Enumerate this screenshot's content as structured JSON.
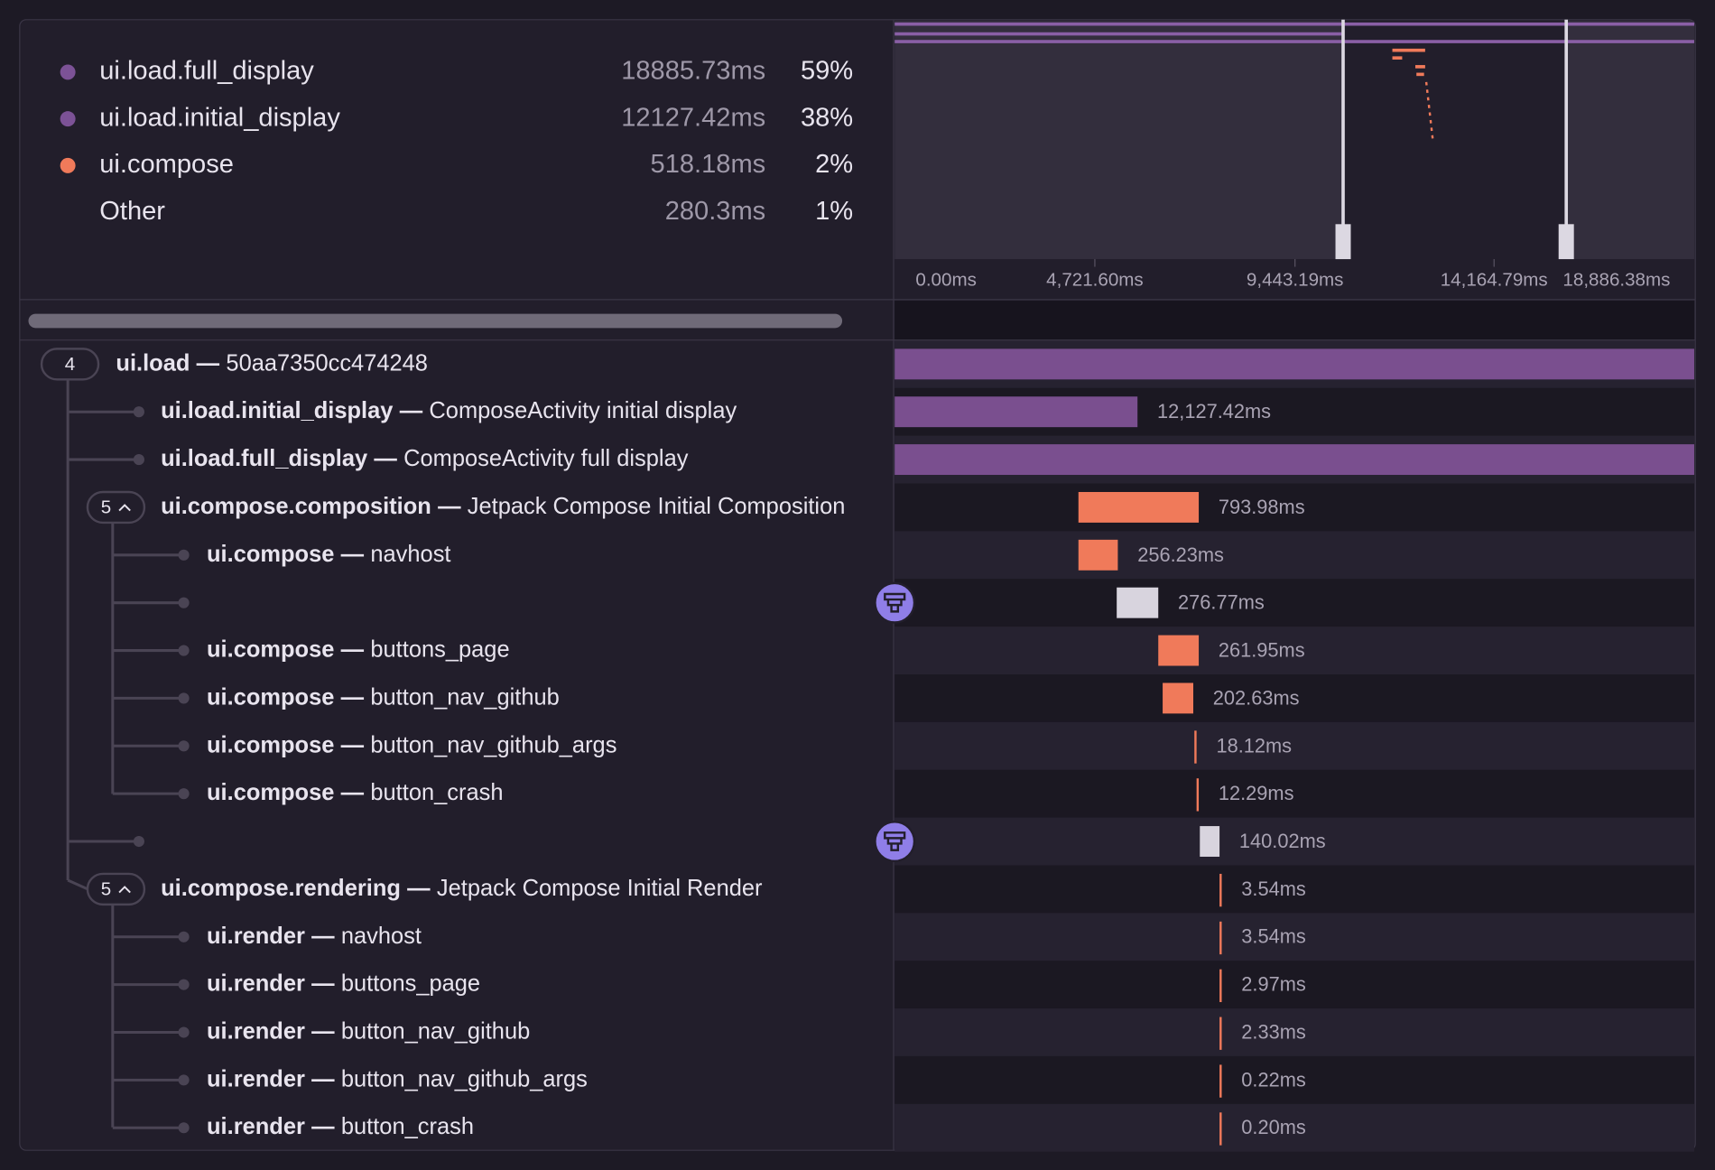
{
  "summary": [
    {
      "name": "ui.load.full_display",
      "duration": "18885.73ms",
      "percent": "59%"
    },
    {
      "name": "ui.load.initial_display",
      "duration": "12127.42ms",
      "percent": "38%"
    },
    {
      "name": "ui.compose",
      "duration": "518.18ms",
      "percent": "2%"
    },
    {
      "name": "Other",
      "duration": "280.3ms",
      "percent": "1%"
    }
  ],
  "timeline": {
    "ticks": [
      "0.00ms",
      "4,721.60ms",
      "9,443.19ms",
      "14,164.79ms",
      "18,886.38ms"
    ]
  },
  "separator": "—",
  "spans": [
    {
      "badge": "4",
      "op": "ui.load",
      "description": "50aa7350cc474248"
    },
    {
      "op": "ui.load.initial_display",
      "description": "ComposeActivity initial display",
      "duration": "12,127.42ms"
    },
    {
      "op": "ui.load.full_display",
      "description": "ComposeActivity full display"
    },
    {
      "badge": "5",
      "op": "ui.compose.composition",
      "description": "Jetpack Compose Initial Composition",
      "duration": "793.98ms"
    },
    {
      "op": "ui.compose",
      "description": "navhost",
      "duration": "256.23ms"
    },
    {
      "duration": "276.77ms"
    },
    {
      "op": "ui.compose",
      "description": "buttons_page",
      "duration": "261.95ms"
    },
    {
      "op": "ui.compose",
      "description": "button_nav_github",
      "duration": "202.63ms"
    },
    {
      "op": "ui.compose",
      "description": "button_nav_github_args",
      "duration": "18.12ms"
    },
    {
      "op": "ui.compose",
      "description": "button_crash",
      "duration": "12.29ms"
    },
    {
      "duration": "140.02ms"
    },
    {
      "badge": "5",
      "op": "ui.compose.rendering",
      "description": "Jetpack Compose Initial Render",
      "duration": "3.54ms"
    },
    {
      "op": "ui.render",
      "description": "navhost",
      "duration": "3.54ms"
    },
    {
      "op": "ui.render",
      "description": "buttons_page",
      "duration": "2.97ms"
    },
    {
      "op": "ui.render",
      "description": "button_nav_github",
      "duration": "2.33ms"
    },
    {
      "op": "ui.render",
      "description": "button_nav_github_args",
      "duration": "0.22ms"
    },
    {
      "op": "ui.render",
      "description": "button_crash",
      "duration": "0.20ms"
    }
  ]
}
